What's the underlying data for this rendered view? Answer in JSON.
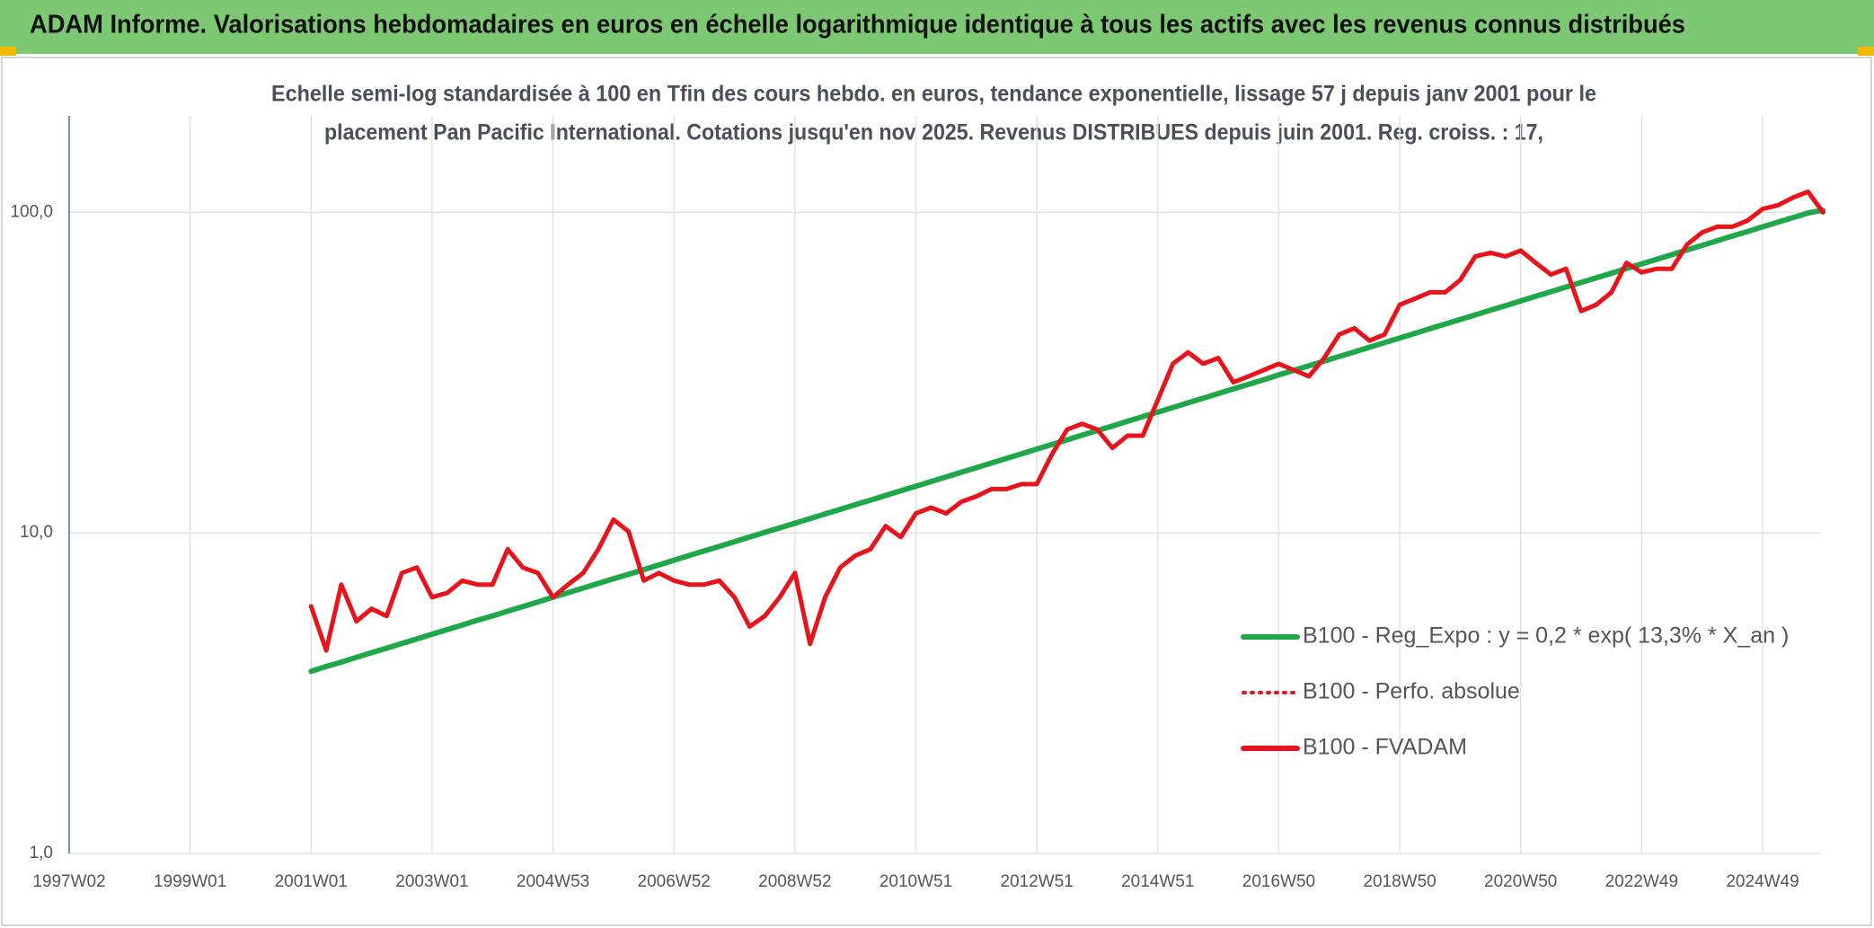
{
  "chart_data": {
    "type": "line",
    "title": "ADAM Informe. Valorisations hebdomadaires en euros en échelle logarithmique identique à tous les actifs avec les revenus connus distribués",
    "subtitle": [
      "Echelle semi-log standardisée à 100 en Tfin des cours hebdo. en euros, tendance exponentielle, lissage 57 j depuis janv 2001 pour le",
      "placement Pan Pacific International. Cotations jusqu'en nov 2025. Revenus DISTRIBUES depuis juin 2001. Reg. croiss. : 17,"
    ],
    "categories": [
      "1997W02",
      null,
      null,
      null,
      null,
      null,
      null,
      null,
      "1999W01",
      null,
      null,
      null,
      null,
      null,
      null,
      null,
      "2001W01",
      null,
      null,
      null,
      null,
      null,
      null,
      null,
      "2003W01",
      null,
      null,
      null,
      null,
      null,
      null,
      null,
      "2004W53",
      null,
      null,
      null,
      null,
      null,
      null,
      null,
      "2006W52",
      null,
      null,
      null,
      null,
      null,
      null,
      null,
      "2008W52",
      null,
      null,
      null,
      null,
      null,
      null,
      null,
      "2010W51",
      null,
      null,
      null,
      null,
      null,
      null,
      null,
      "2012W51",
      null,
      null,
      null,
      null,
      null,
      null,
      null,
      "2014W51",
      null,
      null,
      null,
      null,
      null,
      null,
      null,
      "2016W50",
      null,
      null,
      null,
      null,
      null,
      null,
      null,
      "2018W50",
      null,
      null,
      null,
      null,
      null,
      null,
      null,
      "2020W50",
      null,
      null,
      null,
      null,
      null,
      null,
      null,
      "2022W49",
      null,
      null,
      null,
      null,
      null,
      null,
      null,
      "2024W49",
      null,
      null,
      null,
      null
    ],
    "series": [
      {
        "name": "B100 - Reg_Expo : y = 0,2 * exp( 13,3% *  X_an )",
        "color": "#1fa84a",
        "style": "solid",
        "values": [
          null,
          null,
          null,
          null,
          null,
          null,
          null,
          null,
          null,
          null,
          null,
          null,
          null,
          null,
          null,
          null,
          3.7,
          3.83,
          3.95,
          4.09,
          4.23,
          4.37,
          4.52,
          4.67,
          4.83,
          4.99,
          5.16,
          5.34,
          5.51,
          5.7,
          5.89,
          6.09,
          6.3,
          6.51,
          6.73,
          6.96,
          7.19,
          7.43,
          7.68,
          7.94,
          8.22,
          8.5,
          8.79,
          9.08,
          9.39,
          9.71,
          10.04,
          10.37,
          10.72,
          11.08,
          11.46,
          11.84,
          12.25,
          12.66,
          13.09,
          13.54,
          13.99,
          14.46,
          14.95,
          15.46,
          15.98,
          16.52,
          17.08,
          17.66,
          18.26,
          18.88,
          19.52,
          20.18,
          20.86,
          21.56,
          22.3,
          23.05,
          23.82,
          24.62,
          25.46,
          26.32,
          27.21,
          28.13,
          29.08,
          30.06,
          31.09,
          32.14,
          33.23,
          34.35,
          35.51,
          36.71,
          37.95,
          39.24,
          40.56,
          41.93,
          43.35,
          44.81,
          46.33,
          47.9,
          49.52,
          51.19,
          52.93,
          54.72,
          56.57,
          58.48,
          60.46,
          62.5,
          64.62,
          66.8,
          69.06,
          71.39,
          73.81,
          76.3,
          78.89,
          81.56,
          84.32,
          87.17,
          90.12,
          93.17,
          96.32,
          99.57,
          101.5
        ]
      },
      {
        "name": "B100 - Perfo. absolue",
        "color": "#e8141c",
        "style": "dotted",
        "values": [
          null,
          null,
          null,
          null,
          null,
          null,
          null,
          null,
          null,
          null,
          null,
          null,
          null,
          null,
          null,
          null,
          5.9,
          4.3,
          6.9,
          5.3,
          5.8,
          5.5,
          7.5,
          7.8,
          6.3,
          6.5,
          7.1,
          6.9,
          6.9,
          8.9,
          7.8,
          7.5,
          6.3,
          6.9,
          7.5,
          8.9,
          11.0,
          10.1,
          7.1,
          7.5,
          7.1,
          6.9,
          6.9,
          7.1,
          6.3,
          5.1,
          5.5,
          6.3,
          7.5,
          4.5,
          6.3,
          7.8,
          8.5,
          8.9,
          10.5,
          9.7,
          11.5,
          12.0,
          11.5,
          12.5,
          13.0,
          13.7,
          13.7,
          14.2,
          14.2,
          17.6,
          21.0,
          21.9,
          21.0,
          18.4,
          20.1,
          20.1,
          26.0,
          33.7,
          36.6,
          33.7,
          35.1,
          29.5,
          30.8,
          32.2,
          33.7,
          32.2,
          30.8,
          35.1,
          41.6,
          43.5,
          39.8,
          41.6,
          51.5,
          53.8,
          56.3,
          56.3,
          61.5,
          72.9,
          74.8,
          72.9,
          76.0,
          69.6,
          64.0,
          66.7,
          49.2,
          51.5,
          56.3,
          69.6,
          65.0,
          66.7,
          66.7,
          79.3,
          86.6,
          90.2,
          90.2,
          94.3,
          102.5,
          105.2,
          111.2,
          116.0,
          100
        ]
      },
      {
        "name": "B100 - FVADAM",
        "color": "#e8141c",
        "style": "solid",
        "values": [
          null,
          null,
          null,
          null,
          null,
          null,
          null,
          null,
          null,
          null,
          null,
          null,
          null,
          null,
          null,
          null,
          5.9,
          4.3,
          6.9,
          5.3,
          5.8,
          5.5,
          7.5,
          7.8,
          6.3,
          6.5,
          7.1,
          6.9,
          6.9,
          8.9,
          7.8,
          7.5,
          6.3,
          6.9,
          7.5,
          8.9,
          11.0,
          10.1,
          7.1,
          7.5,
          7.1,
          6.9,
          6.9,
          7.1,
          6.3,
          5.1,
          5.5,
          6.3,
          7.5,
          4.5,
          6.3,
          7.8,
          8.5,
          8.9,
          10.5,
          9.7,
          11.5,
          12.0,
          11.5,
          12.5,
          13.0,
          13.7,
          13.7,
          14.2,
          14.2,
          17.6,
          21.0,
          21.9,
          21.0,
          18.4,
          20.1,
          20.1,
          26.0,
          33.7,
          36.6,
          33.7,
          35.1,
          29.5,
          30.8,
          32.2,
          33.7,
          32.2,
          30.8,
          35.1,
          41.6,
          43.5,
          39.8,
          41.6,
          51.5,
          53.8,
          56.3,
          56.3,
          61.5,
          72.9,
          74.8,
          72.9,
          76.0,
          69.6,
          64.0,
          66.7,
          49.2,
          51.5,
          56.3,
          69.6,
          65.0,
          66.7,
          66.7,
          79.3,
          86.6,
          90.2,
          90.2,
          94.3,
          102.5,
          105.2,
          111.2,
          116.0,
          100
        ]
      }
    ],
    "log_scale": true,
    "ylim": [
      1,
      200
    ],
    "yticks": [
      {
        "value": 1,
        "label": "1,0"
      },
      {
        "value": 10,
        "label": "10,0"
      },
      {
        "value": 100,
        "label": "100,0"
      }
    ],
    "grid": true,
    "legend": "right"
  }
}
